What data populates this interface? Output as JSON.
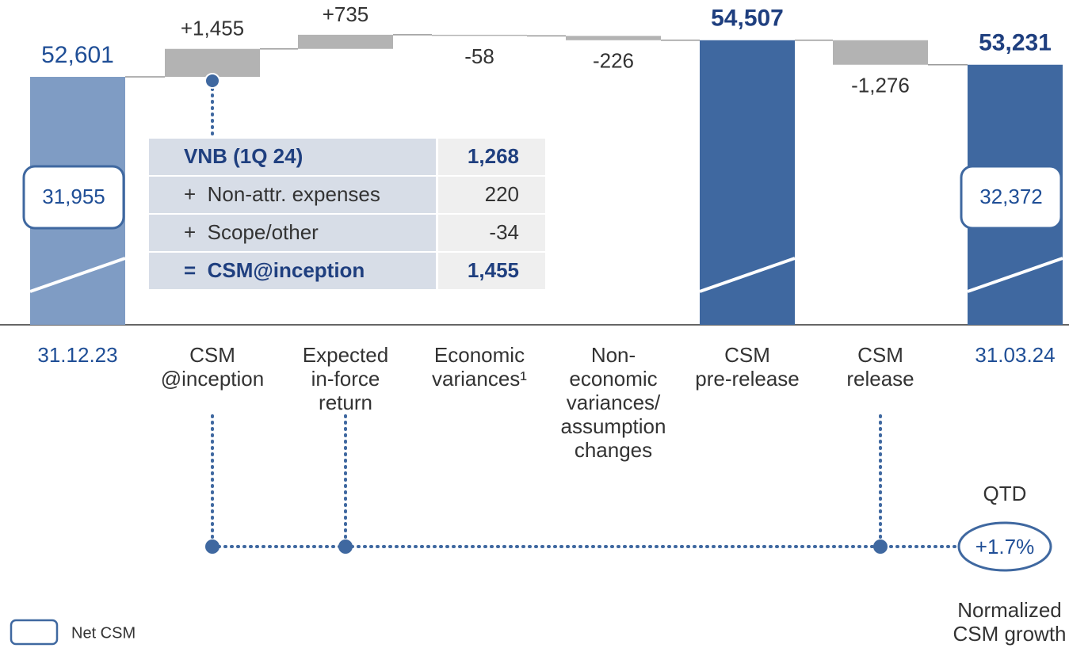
{
  "chart_data": {
    "type": "waterfall",
    "categories": [
      [
        "31.12.23"
      ],
      [
        "CSM",
        "@inception"
      ],
      [
        "Expected",
        "in-force",
        "return"
      ],
      [
        "Economic",
        "variances¹"
      ],
      [
        "Non-",
        "economic",
        "variances/",
        "assumption",
        "changes"
      ],
      [
        "CSM",
        "pre-release"
      ],
      [
        "CSM",
        "release"
      ],
      [
        "31.03.24"
      ]
    ],
    "measure": [
      "total",
      "relative",
      "relative",
      "relative",
      "relative",
      "total",
      "relative",
      "total"
    ],
    "values": [
      52601,
      1455,
      735,
      -58,
      -226,
      54507,
      -1276,
      53231
    ],
    "value_labels": [
      "52,601",
      "+1,455",
      "+735",
      "-58",
      "-226",
      "54,507",
      "-1,276",
      "53,231"
    ],
    "colors": [
      "#7f9cc4",
      "#b3b3b3",
      "#b3b3b3",
      "#b3b3b3",
      "#b3b3b3",
      "#3f68a0",
      "#b3b3b3",
      "#3f68a0"
    ],
    "ylim": [
      39700,
      56600
    ],
    "net_csm": {
      "name": "Net CSM",
      "values": [
        31955,
        null,
        null,
        null,
        null,
        null,
        null,
        32372
      ],
      "value_labels": [
        "31,955",
        null,
        null,
        null,
        null,
        null,
        null,
        "32,372"
      ]
    },
    "inset_table": {
      "rows": [
        [
          "VNB (1Q 24)",
          "1,268"
        ],
        [
          "+  Non-attr. expenses",
          "220"
        ],
        [
          "+  Scope/other",
          "-34"
        ],
        [
          "=  CSM@inception",
          "1,455"
        ]
      ]
    },
    "growth": {
      "period": "QTD",
      "value": 1.7,
      "label": "+1.7%",
      "caption": [
        "Normalized",
        "CSM growth"
      ]
    }
  }
}
